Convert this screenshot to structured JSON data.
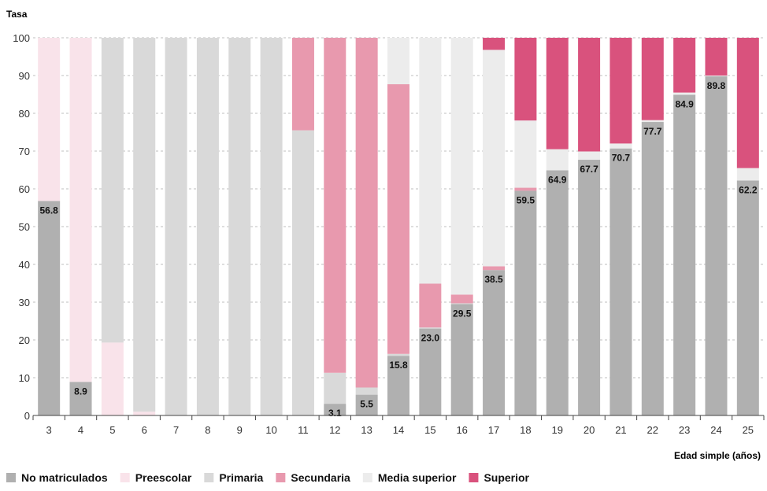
{
  "chart_data": {
    "type": "bar",
    "stacked": true,
    "title": "",
    "ylabel": "Tasa",
    "xlabel": "Edad simple (años)",
    "ylim": [
      0,
      100
    ],
    "yticks": [
      0,
      10,
      20,
      30,
      40,
      50,
      60,
      70,
      80,
      90,
      100
    ],
    "grid": true,
    "legend_position": "bottom",
    "categories": [
      "3",
      "4",
      "5",
      "6",
      "7",
      "8",
      "9",
      "10",
      "11",
      "12",
      "13",
      "14",
      "15",
      "16",
      "17",
      "18",
      "19",
      "20",
      "21",
      "22",
      "23",
      "24",
      "25"
    ],
    "series": [
      {
        "name": "No matriculados",
        "color": "#b0b0b0",
        "values": [
          56.8,
          8.9,
          0,
          0,
          0,
          0,
          0,
          0,
          0,
          3.1,
          5.5,
          15.8,
          23.0,
          29.5,
          38.5,
          59.5,
          64.9,
          67.7,
          70.7,
          77.7,
          84.9,
          89.8,
          62.2
        ]
      },
      {
        "name": "Preescolar",
        "color": "#f9e3ea",
        "values": [
          43.2,
          91.1,
          19.3,
          1.0,
          0,
          0,
          0,
          0,
          0,
          0,
          0,
          0,
          0,
          0,
          0,
          0,
          0,
          0,
          0,
          0,
          0,
          0,
          0
        ]
      },
      {
        "name": "Primaria",
        "color": "#d9d9d9",
        "values": [
          0,
          0,
          80.7,
          99.0,
          100,
          100,
          100,
          100,
          75.5,
          8.2,
          1.9,
          0.5,
          0.3,
          0.2,
          0,
          0,
          0,
          0,
          0,
          0,
          0,
          0,
          0
        ]
      },
      {
        "name": "Secundaria",
        "color": "#e899ae",
        "values": [
          0,
          0,
          0,
          0,
          0,
          0,
          0,
          0,
          24.5,
          88.7,
          92.6,
          71.4,
          11.6,
          2.3,
          1.0,
          0.8,
          0,
          0,
          0,
          0,
          0,
          0,
          0
        ]
      },
      {
        "name": "Media superior",
        "color": "#ececec",
        "values": [
          0,
          0,
          0,
          0,
          0,
          0,
          0,
          0,
          0,
          0,
          0,
          12.3,
          65.1,
          68.0,
          57.3,
          17.8,
          5.6,
          2.2,
          1.3,
          0.5,
          0.6,
          0.2,
          3.3
        ]
      },
      {
        "name": "Superior",
        "color": "#d9527d",
        "values": [
          0,
          0,
          0,
          0,
          0,
          0,
          0,
          0,
          0,
          0,
          0,
          0,
          0,
          0,
          3.2,
          21.9,
          29.5,
          30.1,
          28.0,
          21.8,
          14.5,
          10.0,
          34.5
        ]
      }
    ],
    "data_labels": [
      "56.8",
      "8.9",
      "",
      "",
      "",
      "",
      "",
      "",
      "",
      "3.1",
      "5.5",
      "15.8",
      "23.0",
      "29.5",
      "38.5",
      "59.5",
      "64.9",
      "67.7",
      "70.7",
      "77.7",
      "84.9",
      "89.8",
      "62.2"
    ]
  }
}
